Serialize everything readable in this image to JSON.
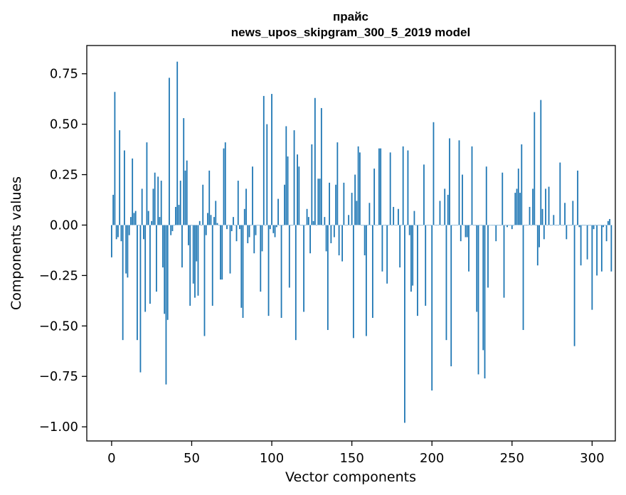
{
  "chart_data": {
    "type": "bar",
    "title": "прайс",
    "subtitle": "news_upos_skipgram_300_5_2019 model",
    "xlabel": "Vector components",
    "ylabel": "Components values",
    "xlim": [
      -15.5,
      314.5
    ],
    "ylim": [
      -1.07,
      0.89
    ],
    "xticks": [
      0,
      50,
      100,
      150,
      200,
      250,
      300
    ],
    "xtick_labels": [
      "0",
      "50",
      "100",
      "150",
      "200",
      "250",
      "300"
    ],
    "yticks": [
      -1.0,
      -0.75,
      -0.5,
      -0.25,
      0.0,
      0.25,
      0.5,
      0.75
    ],
    "ytick_labels": [
      "−1.00",
      "−0.75",
      "−0.50",
      "−0.25",
      "0.00",
      "0.25",
      "0.50",
      "0.75"
    ],
    "bar_color": "#1f77b4",
    "grid": false,
    "values": [
      -0.16,
      0.15,
      0.66,
      -0.07,
      -0.06,
      0.47,
      -0.08,
      -0.57,
      0.37,
      -0.24,
      -0.26,
      -0.05,
      0.04,
      0.33,
      0.06,
      0.07,
      -0.57,
      0.0,
      -0.73,
      0.18,
      -0.07,
      -0.43,
      0.41,
      0.07,
      -0.39,
      0.02,
      0.18,
      0.26,
      -0.33,
      0.24,
      0.04,
      0.22,
      -0.21,
      -0.44,
      -0.79,
      -0.47,
      0.73,
      -0.05,
      -0.03,
      0.0,
      0.09,
      0.81,
      0.1,
      0.22,
      -0.21,
      0.53,
      0.27,
      0.32,
      -0.1,
      -0.4,
      0.0,
      -0.29,
      -0.36,
      -0.18,
      -0.35,
      0.02,
      0.0,
      0.2,
      -0.55,
      -0.05,
      0.06,
      0.27,
      0.05,
      -0.4,
      0.04,
      0.12,
      0.01,
      0.0,
      -0.27,
      -0.27,
      0.38,
      0.41,
      -0.02,
      0.0,
      -0.24,
      -0.03,
      0.04,
      0.0,
      -0.08,
      0.22,
      -0.02,
      -0.41,
      -0.46,
      0.08,
      0.18,
      -0.09,
      -0.06,
      0.0,
      0.29,
      -0.14,
      -0.05,
      0.0,
      0.0,
      -0.33,
      -0.13,
      0.64,
      0.0,
      0.5,
      -0.45,
      -0.02,
      0.65,
      -0.04,
      -0.06,
      -0.01,
      0.13,
      0.0,
      -0.46,
      0.0,
      0.2,
      0.49,
      0.34,
      -0.31,
      0.0,
      0.0,
      0.47,
      -0.57,
      0.35,
      0.29,
      0.0,
      0.0,
      -0.43,
      0.0,
      0.08,
      0.04,
      -0.14,
      0.4,
      0.02,
      0.63,
      0.0,
      0.23,
      0.23,
      0.58,
      0.0,
      0.04,
      -0.13,
      -0.52,
      0.21,
      -0.09,
      0.0,
      -0.06,
      0.2,
      0.41,
      -0.15,
      0.0,
      -0.18,
      0.21,
      0.0,
      0.0,
      0.05,
      0.0,
      0.16,
      -0.56,
      0.25,
      0.12,
      0.39,
      0.36,
      0.0,
      0.0,
      -0.15,
      -0.55,
      0.0,
      0.11,
      0.0,
      -0.46,
      0.28,
      0.0,
      0.0,
      0.38,
      0.38,
      -0.23,
      0.0,
      0.0,
      -0.29,
      0.0,
      0.36,
      0.0,
      0.09,
      0.0,
      0.0,
      0.08,
      -0.21,
      0.0,
      0.39,
      -0.98,
      0.0,
      0.37,
      -0.05,
      -0.33,
      -0.3,
      0.07,
      0.0,
      -0.45,
      0.0,
      0.0,
      0.0,
      0.3,
      -0.4,
      0.0,
      0.0,
      0.0,
      -0.82,
      0.51,
      0.0,
      0.0,
      0.0,
      0.12,
      0.0,
      0.0,
      0.18,
      -0.57,
      0.15,
      0.43,
      -0.7,
      0.0,
      0.0,
      0.0,
      0.0,
      0.42,
      -0.08,
      0.25,
      0.0,
      -0.06,
      -0.06,
      -0.23,
      0.0,
      0.39,
      0.0,
      0.0,
      -0.43,
      -0.74,
      0.0,
      0.0,
      -0.62,
      -0.76,
      0.29,
      -0.31,
      0.0,
      0.0,
      0.0,
      0.0,
      -0.08,
      0.0,
      0.0,
      0.0,
      0.26,
      -0.36,
      0.0,
      -0.01,
      0.0,
      0.0,
      -0.02,
      0.0,
      0.16,
      0.18,
      0.28,
      0.16,
      0.4,
      -0.52,
      0.0,
      0.0,
      0.0,
      0.09,
      0.0,
      0.18,
      0.56,
      0.0,
      -0.2,
      -0.11,
      0.62,
      0.08,
      -0.07,
      0.18,
      0.0,
      0.19,
      0.0,
      0.0,
      0.05,
      0.0,
      0.0,
      0.0,
      0.31,
      0.0,
      0.0,
      0.11,
      -0.07,
      0.0,
      0.0,
      0.0,
      0.12,
      -0.6,
      0.0,
      0.27,
      -0.01,
      -0.2,
      0.0,
      0.0,
      0.0,
      -0.17,
      0.0,
      0.0,
      -0.42,
      -0.02,
      0.0,
      -0.25,
      0.0,
      0.0,
      -0.23,
      -0.01,
      0.0,
      -0.08,
      0.02,
      0.03,
      -0.23
    ]
  }
}
